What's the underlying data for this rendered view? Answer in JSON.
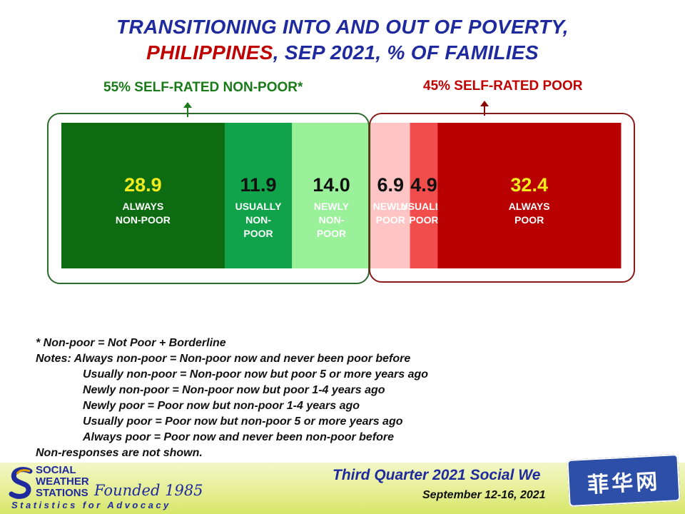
{
  "title_line1": "TRANSITIONING INTO AND OUT OF POVERTY,",
  "title_line2_red": "PHILIPPINES",
  "title_line2_rest": ", SEP 2021, % OF FAMILIES",
  "group_nonpoor_label": "55% SELF-RATED NON-POOR*",
  "group_poor_label": "45% SELF-RATED POOR",
  "chart_data": {
    "type": "bar",
    "orientation": "horizontal-stacked-100",
    "title": "TRANSITIONING INTO AND OUT OF POVERTY, PHILIPPINES, SEP 2021, % OF FAMILIES",
    "unit": "% of families",
    "groups": [
      {
        "name": "55% SELF-RATED NON-POOR*",
        "total": 55
      },
      {
        "name": "45% SELF-RATED POOR",
        "total": 45
      }
    ],
    "segments": [
      {
        "value": 28.9,
        "value_label": "28.9",
        "label_lines": [
          "ALWAYS",
          "NON-POOR"
        ],
        "color": "#0d6b12",
        "value_color": "#f2ec1d",
        "label_color": "#ffffff"
      },
      {
        "value": 11.9,
        "value_label": "11.9",
        "label_lines": [
          "USUALLY",
          "NON-",
          "POOR"
        ],
        "color": "#10a34a",
        "value_color": "#111111",
        "label_color": "#ffffff"
      },
      {
        "value": 14.0,
        "value_label": "14.0",
        "label_lines": [
          "NEWLY",
          "NON-",
          "POOR"
        ],
        "color": "#9af19a",
        "value_color": "#111111",
        "label_color": "#1a1a1a"
      },
      {
        "value": 6.9,
        "value_label": "6.9",
        "label_lines": [
          "NEWLY",
          "POOR"
        ],
        "color": "#ffc5c5",
        "value_color": "#111111",
        "label_color": "#1a1a1a"
      },
      {
        "value": 4.9,
        "value_label": "4.9",
        "label_lines": [
          "USUALLY",
          "POOR"
        ],
        "color": "#f24d4d",
        "value_color": "#111111",
        "label_color": "#ffffff"
      },
      {
        "value": 32.4,
        "value_label": "32.4",
        "label_lines": [
          "ALWAYS",
          "POOR"
        ],
        "color": "#b80000",
        "value_color": "#f2ec1d",
        "label_color": "#ffffff"
      }
    ]
  },
  "notes": [
    "* Non-poor = Not Poor + Borderline",
    "Notes: Always non-poor = Non-poor now and never been poor before",
    "Usually non-poor = Non-poor now but poor 5 or more years ago",
    "Newly non-poor = Non-poor now but poor 1-4 years ago",
    "Newly poor = Poor now but non-poor 1-4 years ago",
    "Usually poor = Poor now but non-poor 5 or more years ago",
    "Always poor = Poor now and never been non-poor before",
    "Non-responses are not shown."
  ],
  "footer": {
    "logo_line1": "SOCIAL",
    "logo_line2": "WEATHER",
    "logo_line3": "STATIONS",
    "founded": "Founded 1985",
    "tagline": "Statistics for Advocacy",
    "survey_title": "Third Quarter 2021 Social We",
    "survey_date": "September 12-16, 2021",
    "watermark": "菲华网"
  },
  "colors": {
    "title_blue": "#1f2a9e",
    "title_red": "#c00000",
    "nonpoor_green": "#1a7a1a",
    "poor_red": "#c00000"
  }
}
